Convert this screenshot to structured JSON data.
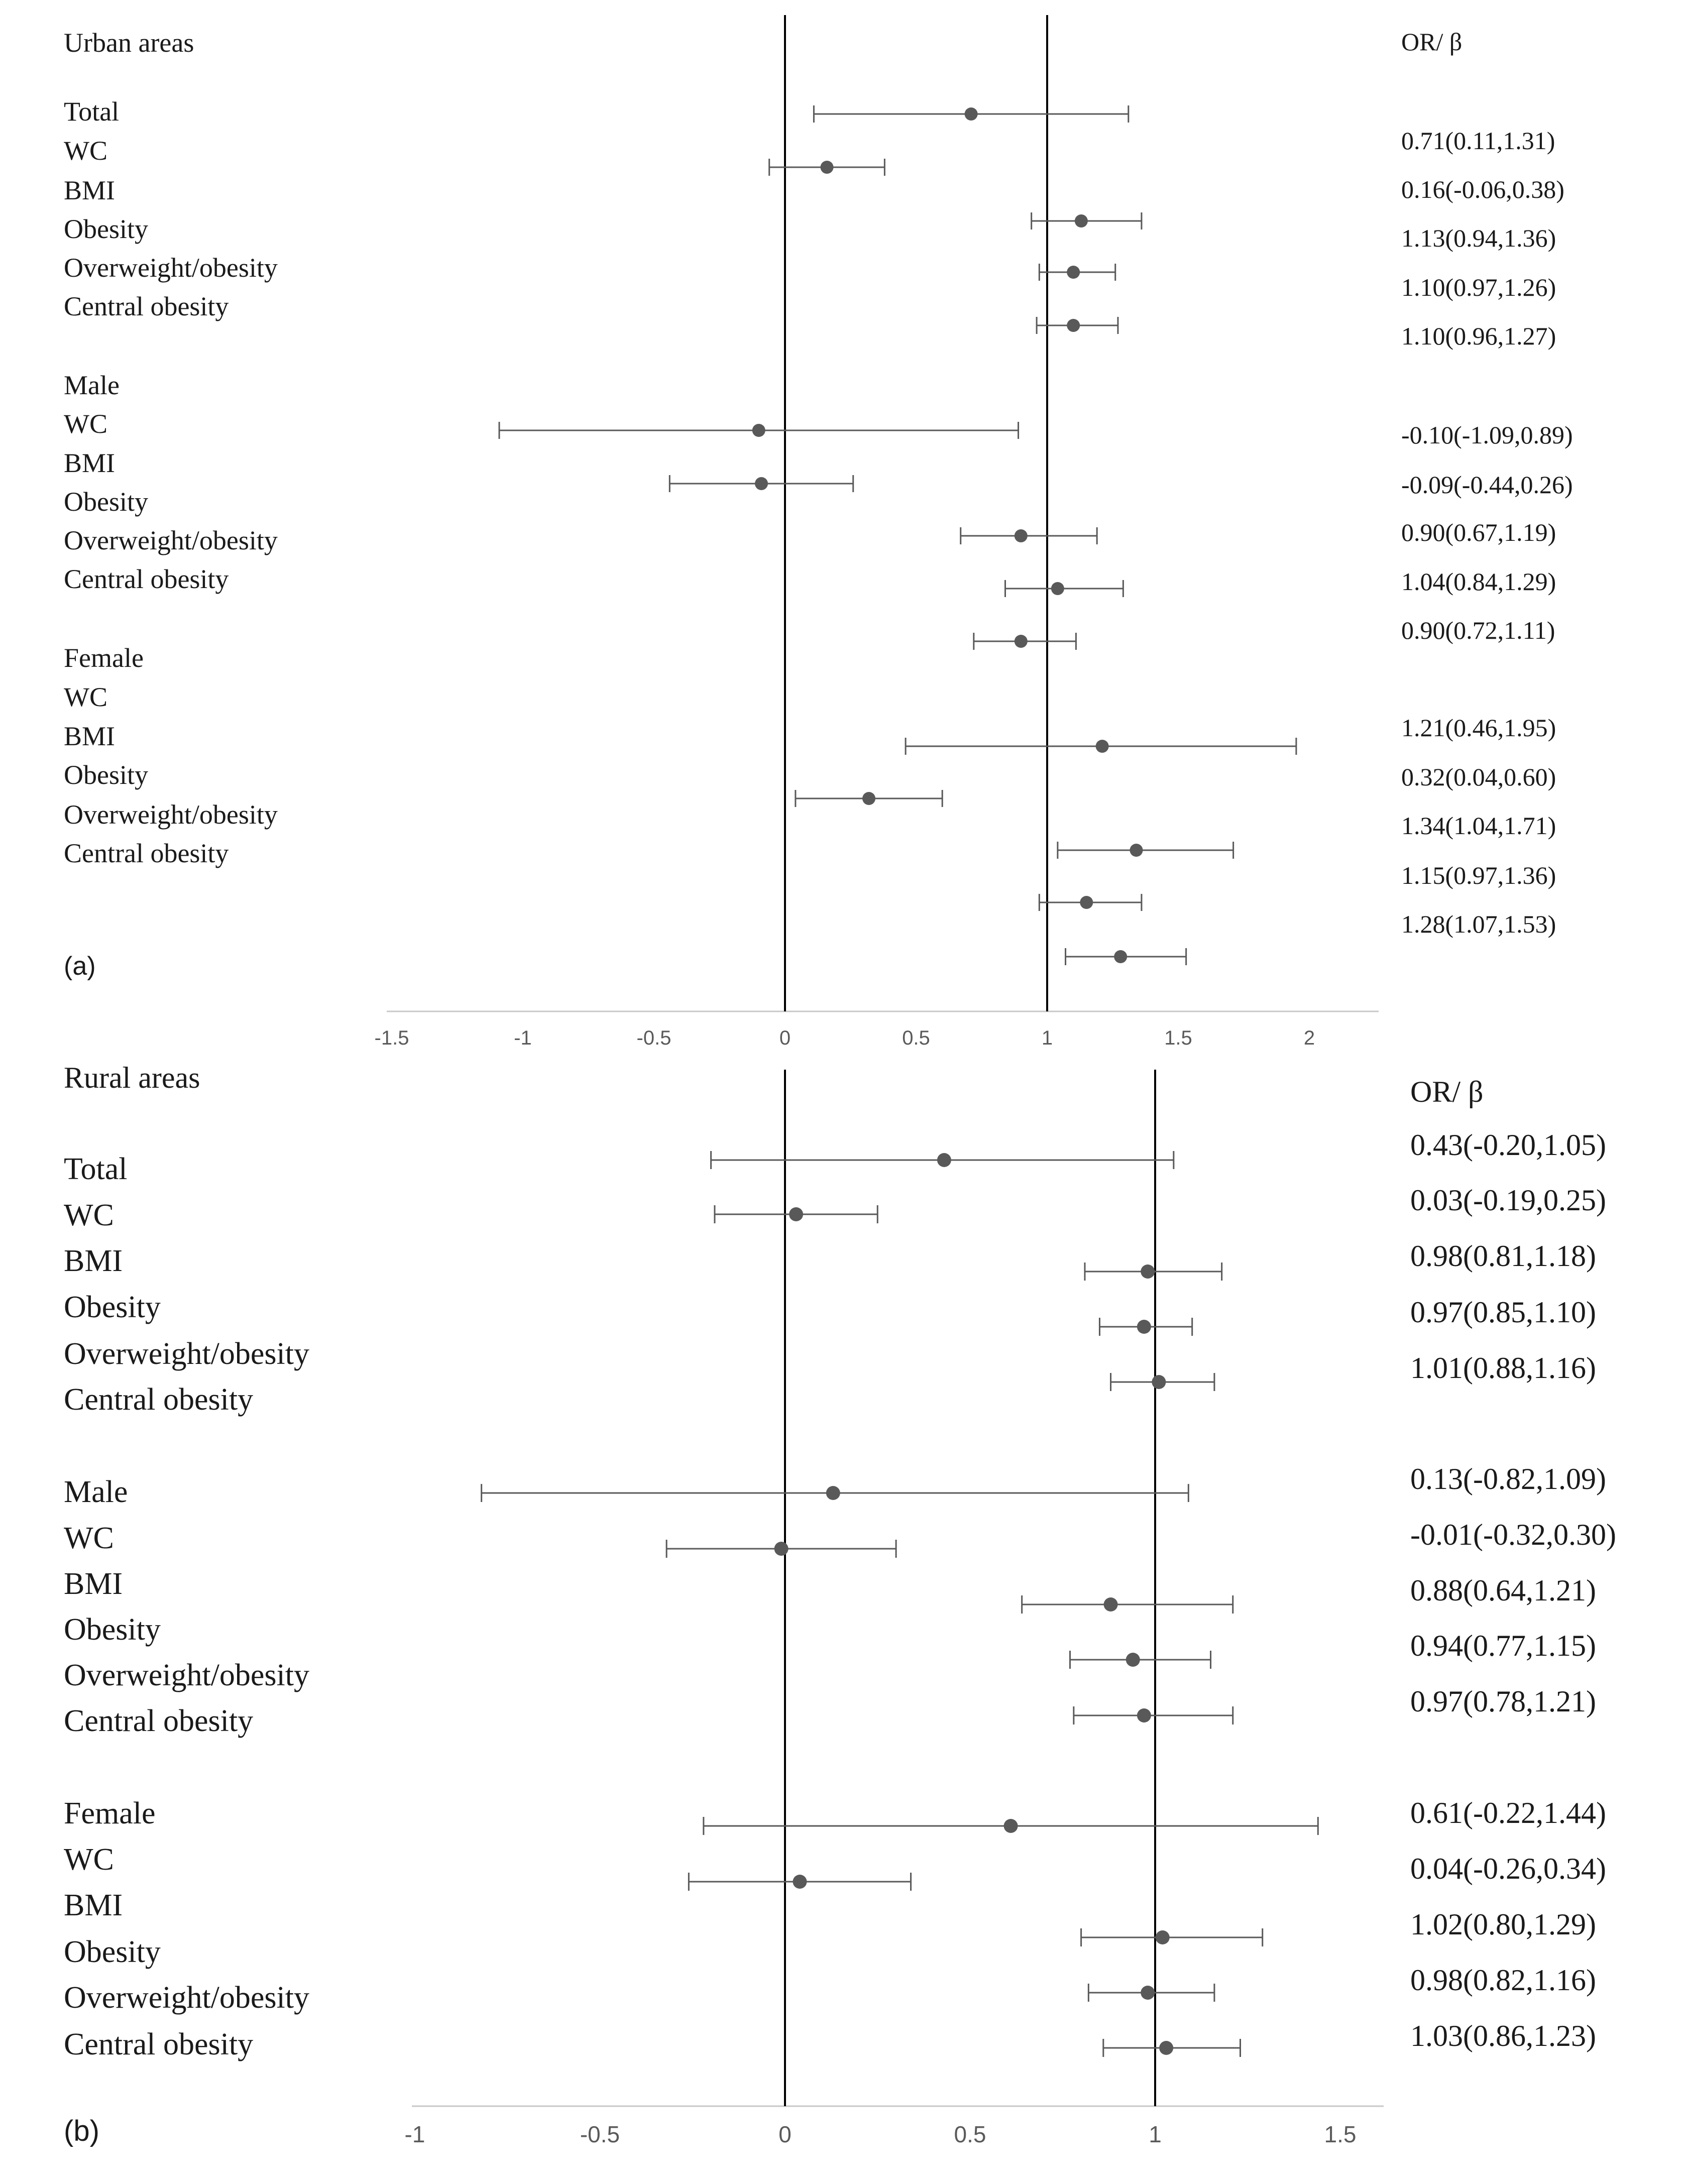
{
  "chart_data": [
    {
      "type": "forest",
      "panel_title": "Urban areas",
      "panel_label": "(a)",
      "column_header": "OR/ β",
      "xlim": [
        -1.5,
        2
      ],
      "x_ticks": [
        "-1.5",
        "-1",
        "-0.5",
        "0",
        "0.5",
        "1",
        "1.5",
        "2"
      ],
      "reference_lines": [
        0,
        1
      ],
      "row_labels": [
        "Total",
        "WC",
        "BMI",
        "Obesity",
        "Overweight/obesity",
        "Central obesity",
        "Male",
        "WC",
        "BMI",
        "Obesity",
        "Overweight/obesity",
        "Central obesity",
        "Female",
        "WC",
        "BMI",
        "Obesity",
        "Overweight/obesity",
        "Central obesity"
      ],
      "estimates": [
        {
          "est": 0.71,
          "low": 0.11,
          "high": 1.31
        },
        {
          "est": 0.16,
          "low": -0.06,
          "high": 0.38
        },
        {
          "est": 1.13,
          "low": 0.94,
          "high": 1.36
        },
        {
          "est": 1.1,
          "low": 0.97,
          "high": 1.26
        },
        {
          "est": 1.1,
          "low": 0.96,
          "high": 1.27
        },
        {
          "est": -0.1,
          "low": -1.09,
          "high": 0.89
        },
        {
          "est": -0.09,
          "low": -0.44,
          "high": 0.26
        },
        {
          "est": 0.9,
          "low": 0.67,
          "high": 1.19
        },
        {
          "est": 1.04,
          "low": 0.84,
          "high": 1.29
        },
        {
          "est": 0.9,
          "low": 0.72,
          "high": 1.11
        },
        {
          "est": 1.21,
          "low": 0.46,
          "high": 1.95
        },
        {
          "est": 0.32,
          "low": 0.04,
          "high": 0.6
        },
        {
          "est": 1.34,
          "low": 1.04,
          "high": 1.71
        },
        {
          "est": 1.15,
          "low": 0.97,
          "high": 1.36
        },
        {
          "est": 1.28,
          "low": 1.07,
          "high": 1.53
        }
      ],
      "value_labels": [
        "0.71(0.11,1.31)",
        "0.16(-0.06,0.38)",
        "1.13(0.94,1.36)",
        "1.10(0.97,1.26)",
        "1.10(0.96,1.27)",
        "-0.10(-1.09,0.89)",
        "-0.09(-0.44,0.26)",
        "0.90(0.67,1.19)",
        "1.04(0.84,1.29)",
        "0.90(0.72,1.11)",
        "1.21(0.46,1.95)",
        "0.32(0.04,0.60)",
        "1.34(1.04,1.71)",
        "1.15(0.97,1.36)",
        "1.28(1.07,1.53)"
      ]
    },
    {
      "type": "forest",
      "panel_title": "Rural areas",
      "panel_label": "(b)",
      "column_header": "OR/ β",
      "xlim": [
        -1,
        1.5
      ],
      "x_ticks": [
        "-1",
        "-0.5",
        "0",
        "0.5",
        "1",
        "1.5"
      ],
      "reference_lines": [
        0,
        1
      ],
      "row_labels": [
        "Total",
        "WC",
        "BMI",
        "Obesity",
        "Overweight/obesity",
        "Central obesity",
        "Male",
        "WC",
        "BMI",
        "Obesity",
        "Overweight/obesity",
        "Central obesity",
        "Female",
        "WC",
        "BMI",
        "Obesity",
        "Overweight/obesity",
        "Central obesity"
      ],
      "estimates": [
        {
          "est": 0.43,
          "low": -0.2,
          "high": 1.05
        },
        {
          "est": 0.03,
          "low": -0.19,
          "high": 0.25
        },
        {
          "est": 0.98,
          "low": 0.81,
          "high": 1.18
        },
        {
          "est": 0.97,
          "low": 0.85,
          "high": 1.1
        },
        {
          "est": 1.01,
          "low": 0.88,
          "high": 1.16
        },
        {
          "est": 0.13,
          "low": -0.82,
          "high": 1.09
        },
        {
          "est": -0.01,
          "low": -0.32,
          "high": 0.3
        },
        {
          "est": 0.88,
          "low": 0.64,
          "high": 1.21
        },
        {
          "est": 0.94,
          "low": 0.77,
          "high": 1.15
        },
        {
          "est": 0.97,
          "low": 0.78,
          "high": 1.21
        },
        {
          "est": 0.61,
          "low": -0.22,
          "high": 1.44
        },
        {
          "est": 0.04,
          "low": -0.26,
          "high": 0.34
        },
        {
          "est": 1.02,
          "low": 0.8,
          "high": 1.29
        },
        {
          "est": 0.98,
          "low": 0.82,
          "high": 1.16
        },
        {
          "est": 1.03,
          "low": 0.86,
          "high": 1.23
        }
      ],
      "value_labels": [
        "0.43(-0.20,1.05)",
        "0.03(-0.19,0.25)",
        "0.98(0.81,1.18)",
        "0.97(0.85,1.10)",
        "1.01(0.88,1.16)",
        "0.13(-0.82,1.09)",
        "-0.01(-0.32,0.30)",
        "0.88(0.64,1.21)",
        "0.94(0.77,1.15)",
        "0.97(0.78,1.21)",
        "0.61(-0.22,1.44)",
        "0.04(-0.26,0.34)",
        "1.02(0.80,1.29)",
        "0.98(0.82,1.16)",
        "1.03(0.86,1.23)"
      ]
    }
  ],
  "colors": {
    "marker": "#595959",
    "whisker": "#595959",
    "reference_line": "#000000",
    "axis": "#c8c8c8",
    "text": "#1a1a1a",
    "tick_text": "#5a5a5a"
  }
}
